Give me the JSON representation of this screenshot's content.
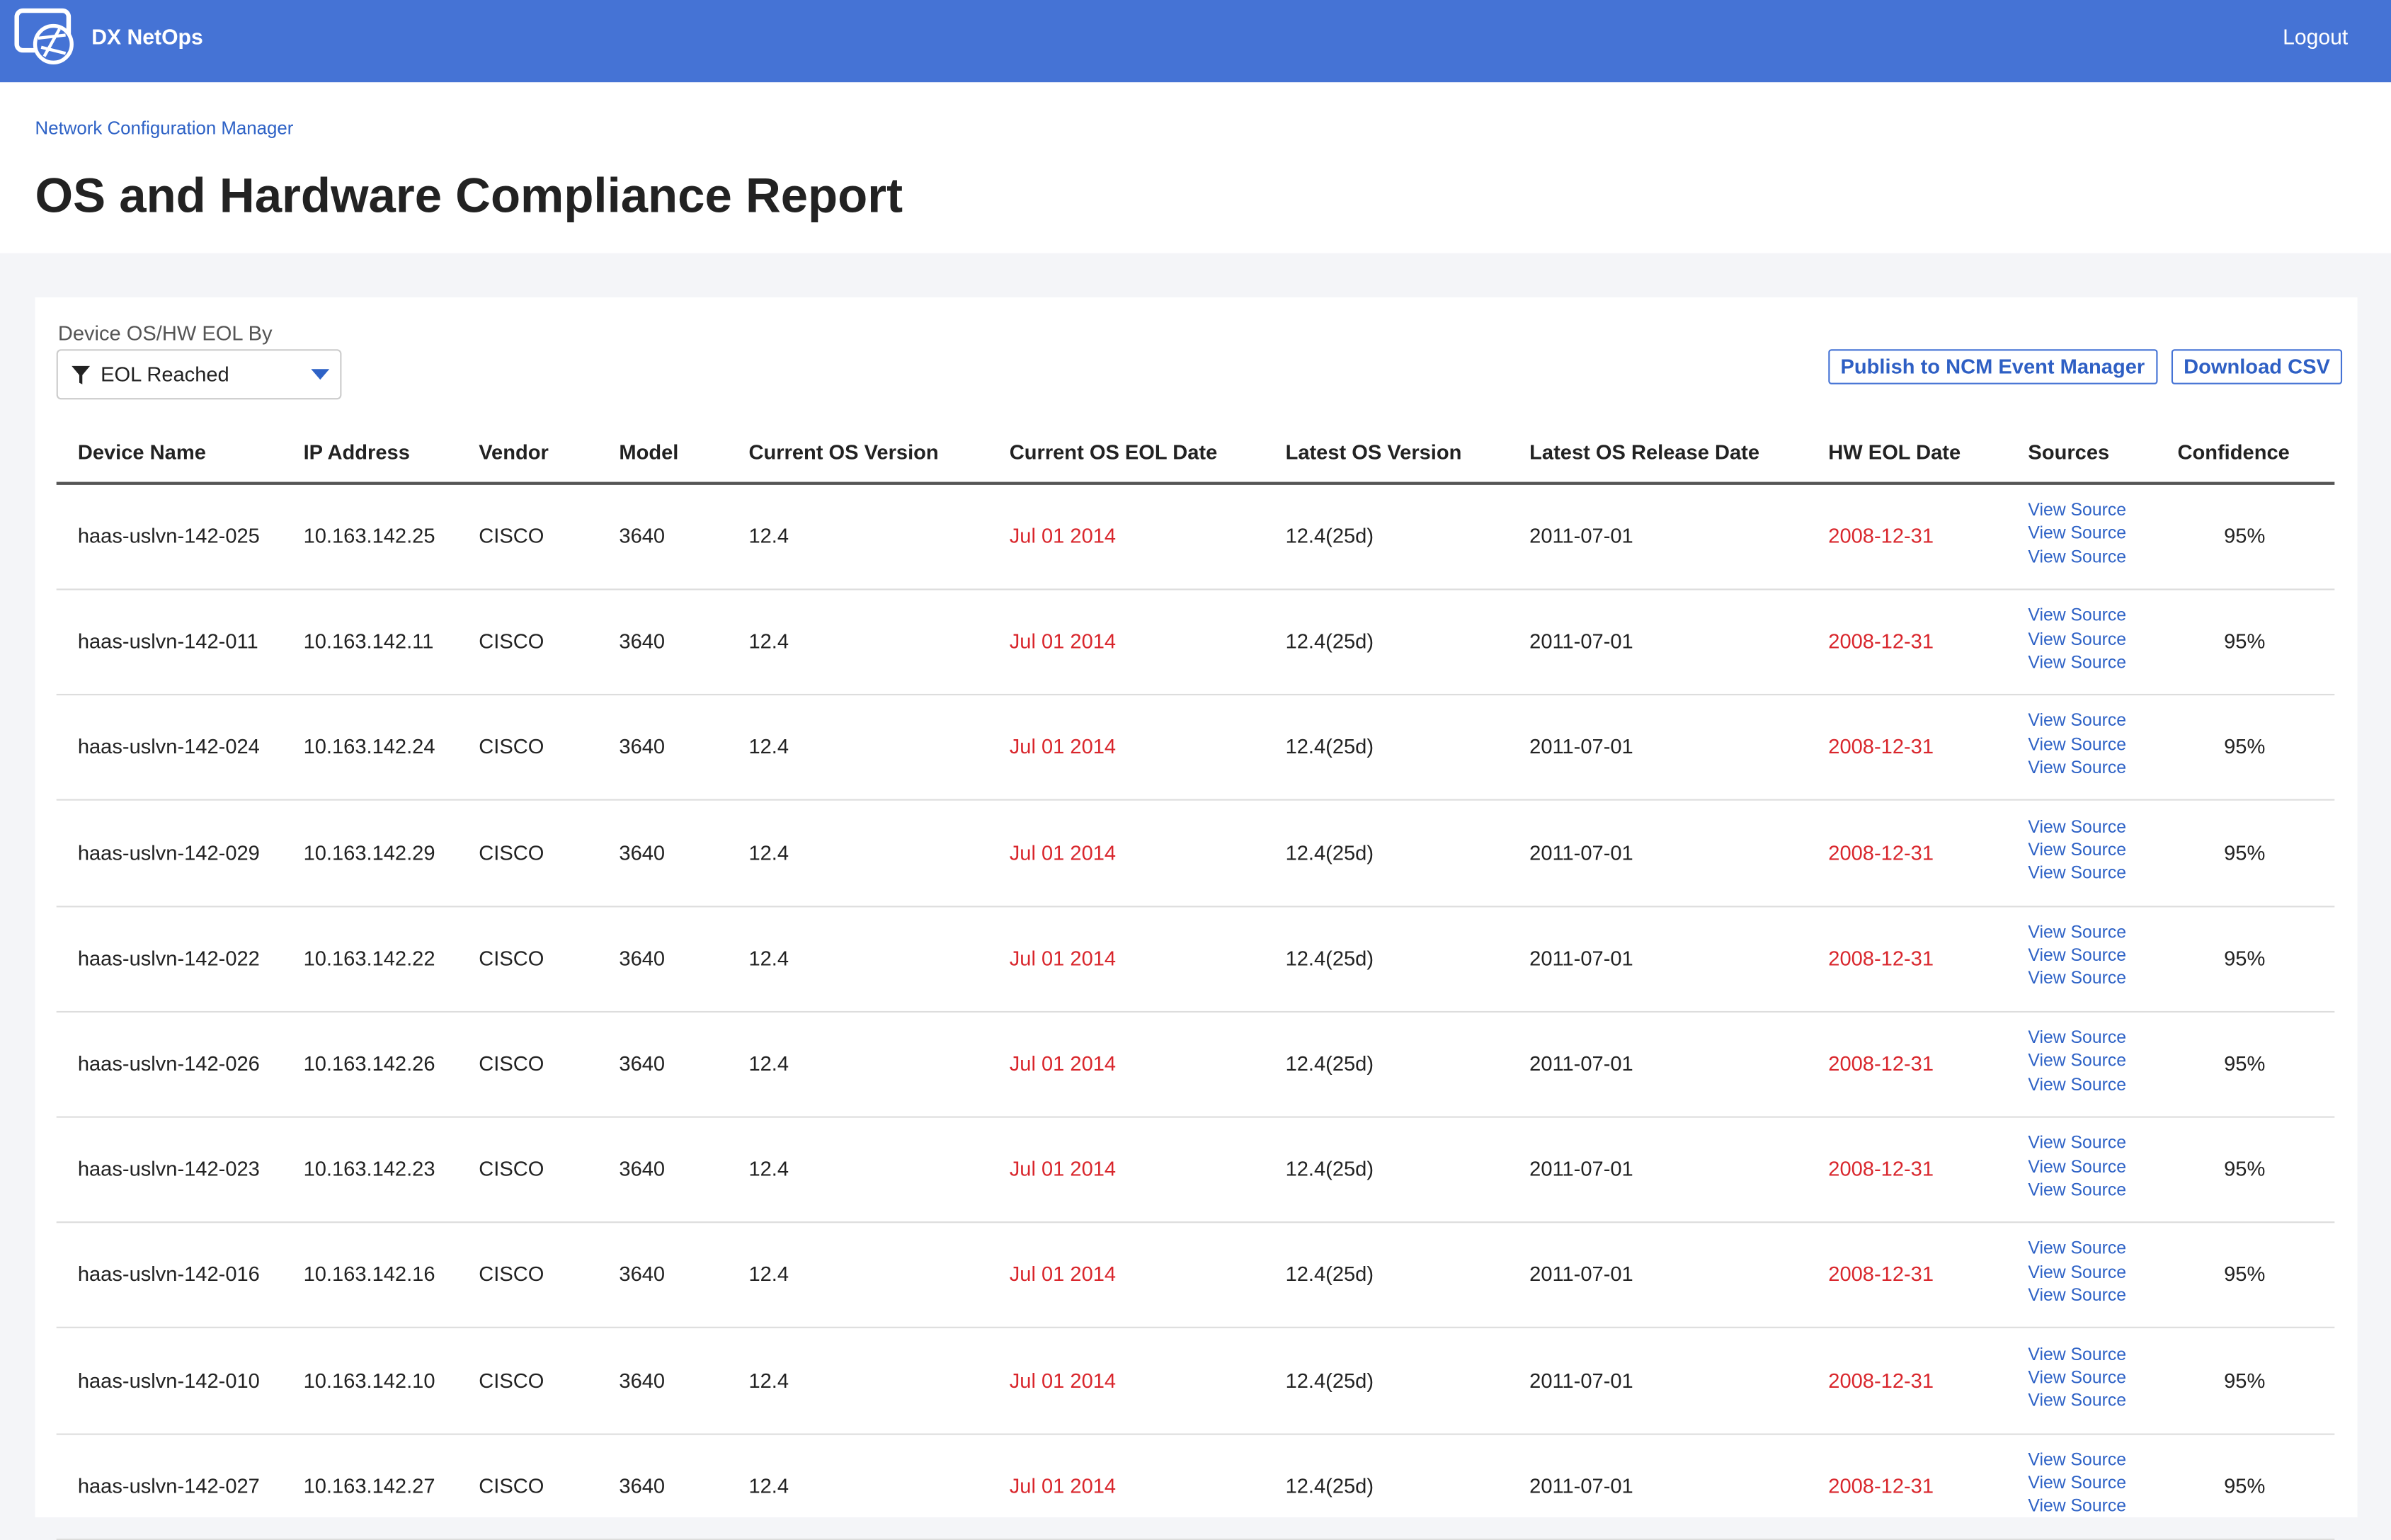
{
  "header": {
    "brand": "DX NetOps",
    "logout": "Logout"
  },
  "breadcrumb": "Network Configuration Manager",
  "title": "OS and Hardware Compliance Report",
  "filter": {
    "label": "Device OS/HW EOL By",
    "value": "EOL Reached"
  },
  "buttons": [
    "Publish to NCM Event Manager",
    "Download CSV"
  ],
  "table": {
    "columns": [
      "Device Name",
      "IP Address",
      "Vendor",
      "Model",
      "Current OS Version",
      "Current OS EOL Date",
      "Latest OS Version",
      "Latest OS Release Date",
      "HW EOL Date",
      "Sources",
      "Confidence"
    ],
    "rows": [
      {
        "cells": [
          "haas-uslvn-142-025",
          "10.163.142.25",
          "CISCO",
          "3640",
          "12.4",
          "Jul 01 2014",
          "12.4(25d)",
          "2011-07-01",
          "2008-12-31"
        ],
        "sources": [
          "View Source",
          "View Source",
          "View Source"
        ],
        "confidence": "95%"
      },
      {
        "cells": [
          "haas-uslvn-142-011",
          "10.163.142.11",
          "CISCO",
          "3640",
          "12.4",
          "Jul 01 2014",
          "12.4(25d)",
          "2011-07-01",
          "2008-12-31"
        ],
        "sources": [
          "View Source",
          "View Source",
          "View Source"
        ],
        "confidence": "95%"
      },
      {
        "cells": [
          "haas-uslvn-142-024",
          "10.163.142.24",
          "CISCO",
          "3640",
          "12.4",
          "Jul 01 2014",
          "12.4(25d)",
          "2011-07-01",
          "2008-12-31"
        ],
        "sources": [
          "View Source",
          "View Source",
          "View Source"
        ],
        "confidence": "95%"
      },
      {
        "cells": [
          "haas-uslvn-142-029",
          "10.163.142.29",
          "CISCO",
          "3640",
          "12.4",
          "Jul 01 2014",
          "12.4(25d)",
          "2011-07-01",
          "2008-12-31"
        ],
        "sources": [
          "View Source",
          "View Source",
          "View Source"
        ],
        "confidence": "95%"
      },
      {
        "cells": [
          "haas-uslvn-142-022",
          "10.163.142.22",
          "CISCO",
          "3640",
          "12.4",
          "Jul 01 2014",
          "12.4(25d)",
          "2011-07-01",
          "2008-12-31"
        ],
        "sources": [
          "View Source",
          "View Source",
          "View Source"
        ],
        "confidence": "95%"
      },
      {
        "cells": [
          "haas-uslvn-142-026",
          "10.163.142.26",
          "CISCO",
          "3640",
          "12.4",
          "Jul 01 2014",
          "12.4(25d)",
          "2011-07-01",
          "2008-12-31"
        ],
        "sources": [
          "View Source",
          "View Source",
          "View Source"
        ],
        "confidence": "95%"
      },
      {
        "cells": [
          "haas-uslvn-142-023",
          "10.163.142.23",
          "CISCO",
          "3640",
          "12.4",
          "Jul 01 2014",
          "12.4(25d)",
          "2011-07-01",
          "2008-12-31"
        ],
        "sources": [
          "View Source",
          "View Source",
          "View Source"
        ],
        "confidence": "95%"
      },
      {
        "cells": [
          "haas-uslvn-142-016",
          "10.163.142.16",
          "CISCO",
          "3640",
          "12.4",
          "Jul 01 2014",
          "12.4(25d)",
          "2011-07-01",
          "2008-12-31"
        ],
        "sources": [
          "View Source",
          "View Source",
          "View Source"
        ],
        "confidence": "95%"
      },
      {
        "cells": [
          "haas-uslvn-142-010",
          "10.163.142.10",
          "CISCO",
          "3640",
          "12.4",
          "Jul 01 2014",
          "12.4(25d)",
          "2011-07-01",
          "2008-12-31"
        ],
        "sources": [
          "View Source",
          "View Source",
          "View Source"
        ],
        "confidence": "95%"
      },
      {
        "cells": [
          "haas-uslvn-142-027",
          "10.163.142.27",
          "CISCO",
          "3640",
          "12.4",
          "Jul 01 2014",
          "12.4(25d)",
          "2011-07-01",
          "2008-12-31"
        ],
        "sources": [
          "View Source",
          "View Source",
          "View Source"
        ],
        "confidence": "95%"
      }
    ]
  }
}
